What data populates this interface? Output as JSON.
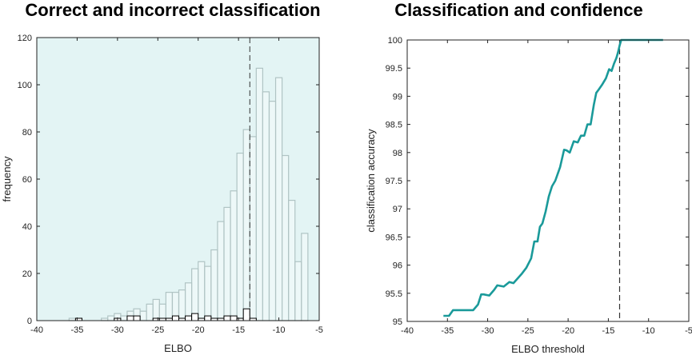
{
  "chart_data": [
    {
      "type": "bar",
      "title": "Correct and incorrect classification",
      "xlabel": "ELBO",
      "ylabel": "frequency",
      "xlim": [
        -40,
        -5
      ],
      "ylim": [
        0,
        120
      ],
      "xticks": [
        -40,
        -35,
        -30,
        -25,
        -20,
        -15,
        -10,
        -5
      ],
      "yticks": [
        0,
        20,
        40,
        60,
        80,
        100,
        120
      ],
      "background": "#e3f4f4",
      "threshold": -13.6,
      "bin_width": 0.8,
      "series": [
        {
          "kind": "correct",
          "color": "#b0c4c4",
          "bins": [
            [
              -36.0,
              1
            ],
            [
              -35.2,
              1
            ],
            [
              -32.0,
              1
            ],
            [
              -31.2,
              2
            ],
            [
              -30.4,
              3
            ],
            [
              -29.6,
              2
            ],
            [
              -28.8,
              4
            ],
            [
              -28.0,
              5
            ],
            [
              -27.2,
              4
            ],
            [
              -26.4,
              7
            ],
            [
              -25.6,
              9
            ],
            [
              -24.8,
              7
            ],
            [
              -24.0,
              12
            ],
            [
              -23.2,
              12
            ],
            [
              -22.4,
              13
            ],
            [
              -21.6,
              16
            ],
            [
              -20.8,
              22
            ],
            [
              -20.0,
              25
            ],
            [
              -19.2,
              23
            ],
            [
              -18.4,
              30
            ],
            [
              -17.6,
              42
            ],
            [
              -16.8,
              48
            ],
            [
              -16.0,
              55
            ],
            [
              -15.2,
              71
            ],
            [
              -14.4,
              81
            ],
            [
              -13.6,
              78
            ],
            [
              -12.8,
              107
            ],
            [
              -12.0,
              97
            ],
            [
              -11.2,
              93
            ],
            [
              -10.4,
              103
            ],
            [
              -9.6,
              70
            ],
            [
              -8.8,
              51
            ],
            [
              -8.0,
              25
            ],
            [
              -7.2,
              37
            ]
          ]
        },
        {
          "kind": "incorrect",
          "color": "#000000",
          "bins": [
            [
              -35.2,
              1
            ],
            [
              -30.4,
              1
            ],
            [
              -28.8,
              2
            ],
            [
              -28.0,
              2
            ],
            [
              -25.6,
              1
            ],
            [
              -24.8,
              1
            ],
            [
              -24.0,
              1
            ],
            [
              -23.2,
              2
            ],
            [
              -22.4,
              1
            ],
            [
              -21.6,
              2
            ],
            [
              -20.8,
              3
            ],
            [
              -20.0,
              1
            ],
            [
              -19.2,
              2
            ],
            [
              -18.4,
              1
            ],
            [
              -17.6,
              1
            ],
            [
              -16.8,
              2
            ],
            [
              -16.0,
              2
            ],
            [
              -15.2,
              1
            ],
            [
              -14.4,
              5
            ],
            [
              -13.6,
              1
            ]
          ]
        }
      ]
    },
    {
      "type": "line",
      "title": "Classification and confidence",
      "xlabel": "ELBO threshold",
      "ylabel": "classification accuracy",
      "xlim": [
        -40,
        -5
      ],
      "ylim": [
        95,
        100
      ],
      "xticks": [
        -40,
        -35,
        -30,
        -25,
        -20,
        -15,
        -10,
        -5
      ],
      "yticks": [
        95,
        95.5,
        96,
        96.5,
        97,
        97.5,
        98,
        98.5,
        99,
        99.5,
        100
      ],
      "threshold": -13.6,
      "color": "#1a9a9a",
      "x": [
        -35.5,
        -34.8,
        -34.3,
        -33.8,
        -33.0,
        -31.8,
        -31.2,
        -30.8,
        -30.5,
        -29.8,
        -29.2,
        -28.8,
        -28.0,
        -27.3,
        -26.8,
        -26.3,
        -25.8,
        -25.2,
        -24.6,
        -24.2,
        -23.8,
        -23.5,
        -23.2,
        -22.8,
        -22.4,
        -22.0,
        -21.6,
        -21.3,
        -21.0,
        -20.5,
        -20.2,
        -19.8,
        -19.3,
        -18.8,
        -18.4,
        -18.0,
        -17.6,
        -17.2,
        -16.8,
        -16.5,
        -16.2,
        -15.8,
        -15.3,
        -14.9,
        -14.6,
        -14.3,
        -14.0,
        -13.8,
        -13.6,
        -13.4,
        -12.0,
        -10.0,
        -8.2
      ],
      "y": [
        95.1,
        95.1,
        95.2,
        95.2,
        95.2,
        95.2,
        95.3,
        95.48,
        95.48,
        95.46,
        95.56,
        95.64,
        95.62,
        95.7,
        95.68,
        95.76,
        95.84,
        95.95,
        96.12,
        96.42,
        96.42,
        96.68,
        96.74,
        96.95,
        97.22,
        97.4,
        97.5,
        97.62,
        97.74,
        98.05,
        98.04,
        98.0,
        98.2,
        98.18,
        98.3,
        98.3,
        98.5,
        98.5,
        98.85,
        99.06,
        99.12,
        99.2,
        99.32,
        99.48,
        99.45,
        99.58,
        99.68,
        99.78,
        99.9,
        100.0,
        100.0,
        100.0,
        100.0
      ]
    }
  ]
}
